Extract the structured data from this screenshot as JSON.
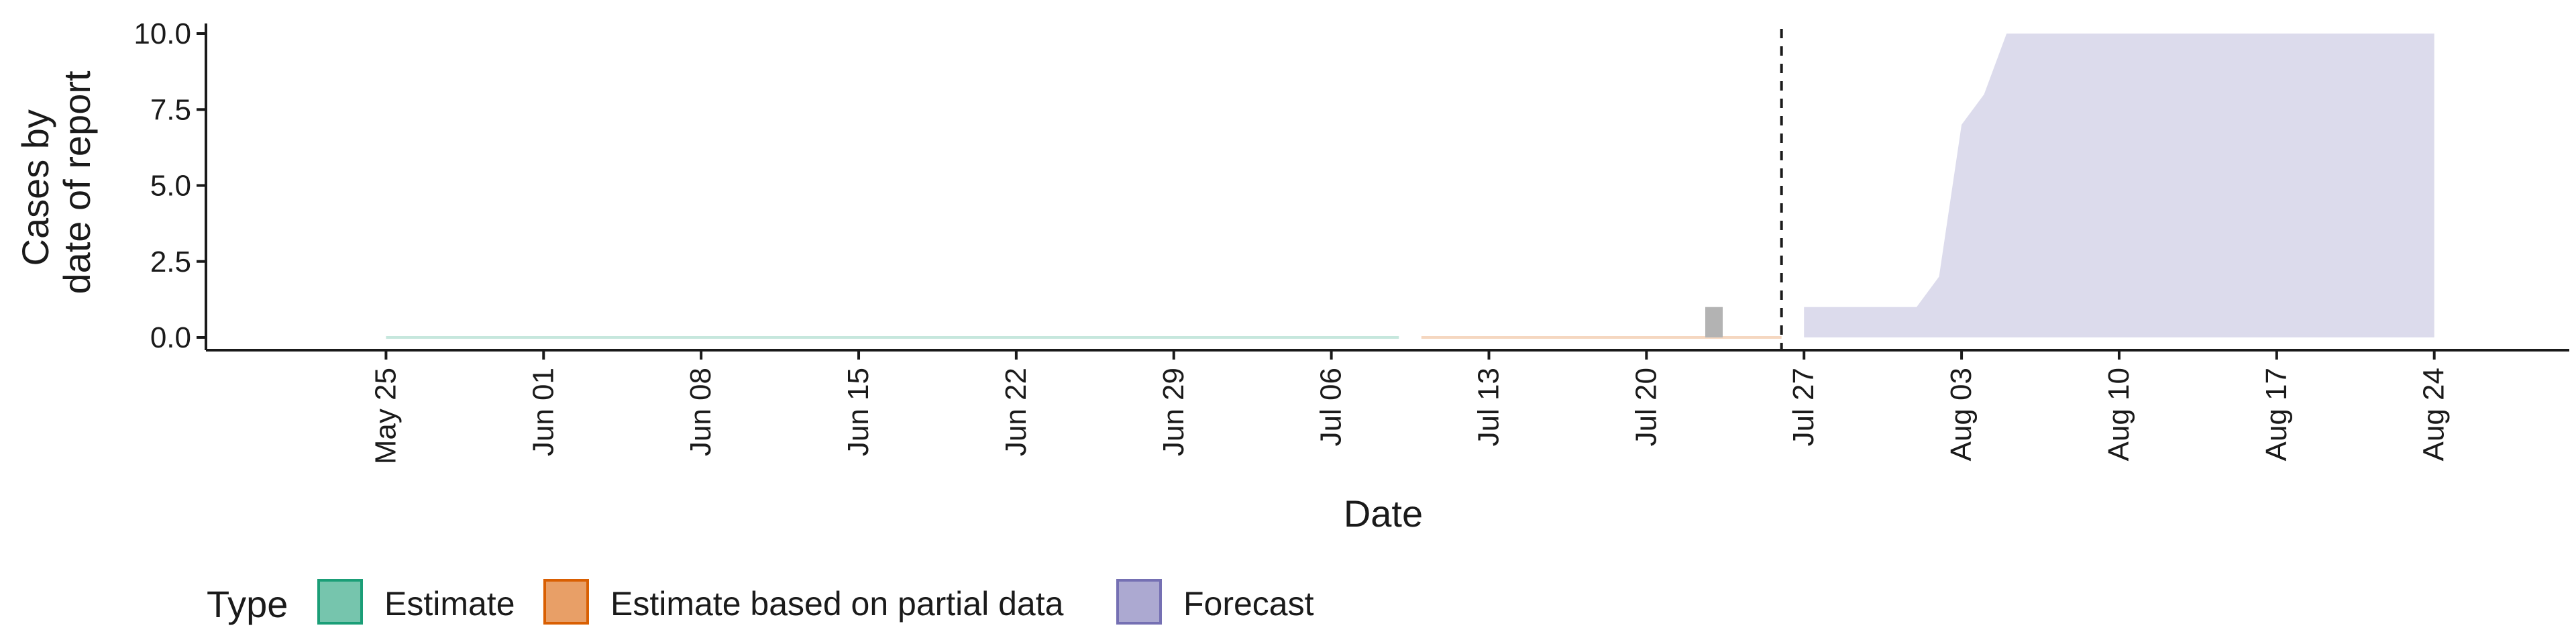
{
  "chart_data": {
    "type": "area",
    "xlabel": "Date",
    "ylabel": [
      "Cases by",
      "date of report"
    ],
    "ylim": [
      0,
      10
    ],
    "y_ticks": [
      0,
      2.5,
      5,
      7.5,
      10
    ],
    "y_tick_labels": [
      "0.0",
      "2.5",
      "5.0",
      "7.5",
      "10.0"
    ],
    "x_range": [
      "2020-05-17",
      "2020-08-30"
    ],
    "x_ticks": [
      "2020-05-25",
      "2020-06-01",
      "2020-06-08",
      "2020-06-15",
      "2020-06-22",
      "2020-06-29",
      "2020-07-06",
      "2020-07-13",
      "2020-07-20",
      "2020-07-27",
      "2020-08-03",
      "2020-08-10",
      "2020-08-17",
      "2020-08-24"
    ],
    "x_tick_labels": [
      "May 25",
      "Jun 01",
      "Jun 08",
      "Jun 15",
      "Jun 22",
      "Jun 29",
      "Jul 06",
      "Jul 13",
      "Jul 20",
      "Jul 27",
      "Aug 03",
      "Aug 10",
      "Aug 17",
      "Aug 24"
    ],
    "forecast_date": "2020-07-26",
    "observed_bars": [
      {
        "date": "2020-07-23",
        "value": 1
      }
    ],
    "series": [
      {
        "name": "Estimate",
        "color": "#1b9e77",
        "x": [
          "2020-05-25",
          "2020-07-09"
        ],
        "lower": [
          0,
          0
        ],
        "upper": [
          0,
          0
        ]
      },
      {
        "name": "Estimate based on partial data",
        "color": "#d95f02",
        "x": [
          "2020-07-10",
          "2020-07-26"
        ],
        "lower": [
          0,
          0
        ],
        "upper": [
          0,
          0
        ]
      },
      {
        "name": "Forecast",
        "color": "#7570b3",
        "x": [
          "2020-07-27",
          "2020-07-28",
          "2020-07-29",
          "2020-07-30",
          "2020-07-31",
          "2020-08-01",
          "2020-08-02",
          "2020-08-03",
          "2020-08-04",
          "2020-08-05",
          "2020-08-24"
        ],
        "lower": [
          0,
          0,
          0,
          0,
          0,
          0,
          0,
          0,
          0,
          0,
          0
        ],
        "upper": [
          1,
          1,
          1,
          1,
          1,
          1,
          2,
          7,
          8,
          10,
          10
        ]
      }
    ],
    "legend": {
      "title": "Type",
      "position": "bottom",
      "items": [
        "Estimate",
        "Estimate based on partial data",
        "Forecast"
      ]
    },
    "grid": false
  }
}
